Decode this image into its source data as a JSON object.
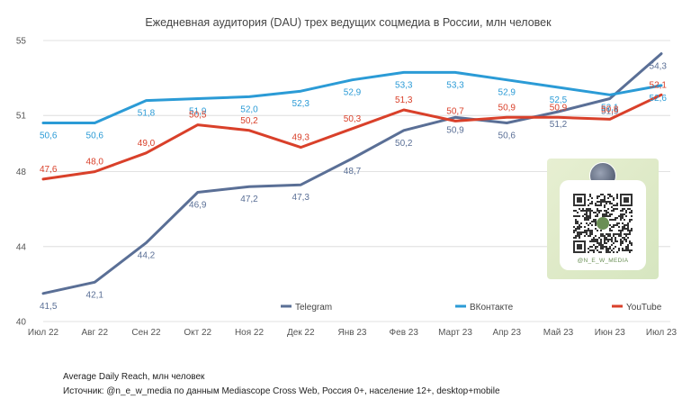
{
  "chart_data": {
    "type": "line",
    "title": "Ежедневная аудитория (DAU) трех ведущих соцмедиа в России, млн человек",
    "categories": [
      "Июл 22",
      "Авг 22",
      "Сен 22",
      "Окт 22",
      "Ноя 22",
      "Дек 22",
      "Янв 23",
      "Фев 23",
      "Март 23",
      "Апр 23",
      "Май 23",
      "Июн 23",
      "Июл 23"
    ],
    "yticks": [
      40,
      44,
      48,
      51,
      55
    ],
    "ylim": [
      40,
      55
    ],
    "series": [
      {
        "name": "Telegram",
        "color": "#5a6f96",
        "values": [
          41.5,
          42.1,
          44.2,
          46.9,
          47.2,
          47.3,
          48.7,
          50.2,
          50.9,
          50.6,
          51.2,
          51.9,
          54.3
        ],
        "labels": [
          "41,5",
          "42,1",
          "44,2",
          "46,9",
          "47,2",
          "47,3",
          "48,7",
          "50,2",
          "50,9",
          "50,6",
          "51,2",
          "51,9",
          "54,3"
        ]
      },
      {
        "name": "ВКонтакте",
        "color": "#2b9bd6",
        "values": [
          50.6,
          50.6,
          51.8,
          51.9,
          52.0,
          52.3,
          52.9,
          53.3,
          53.3,
          52.9,
          52.5,
          52.1,
          52.6
        ],
        "labels": [
          "50,6",
          "50,6",
          "51,8",
          "51,9",
          "52,0",
          "52,3",
          "52,9",
          "53,3",
          "53,3",
          "52,9",
          "52,5",
          "52,1",
          "52,6"
        ]
      },
      {
        "name": "YouTube",
        "color": "#d9402a",
        "values": [
          47.6,
          48.0,
          49.0,
          50.5,
          50.2,
          49.3,
          50.3,
          51.3,
          50.7,
          50.9,
          50.9,
          50.8,
          52.1
        ],
        "labels": [
          "47,6",
          "48,0",
          "49,0",
          "50,5",
          "50,2",
          "49,3",
          "50,3",
          "51,3",
          "50,7",
          "50,9",
          "50,9",
          "50,8",
          "52,1"
        ]
      }
    ],
    "legend_position": "bottom-inside"
  },
  "qr_card": {
    "caption": "@N_E_W_MEDIA"
  },
  "footnotes": {
    "line1": "Average Daily Reach, млн человек",
    "line2": "Источник: @n_e_w_media по данным Mediascope Cross Web, Россия 0+, население 12+, desktop+mobile"
  }
}
